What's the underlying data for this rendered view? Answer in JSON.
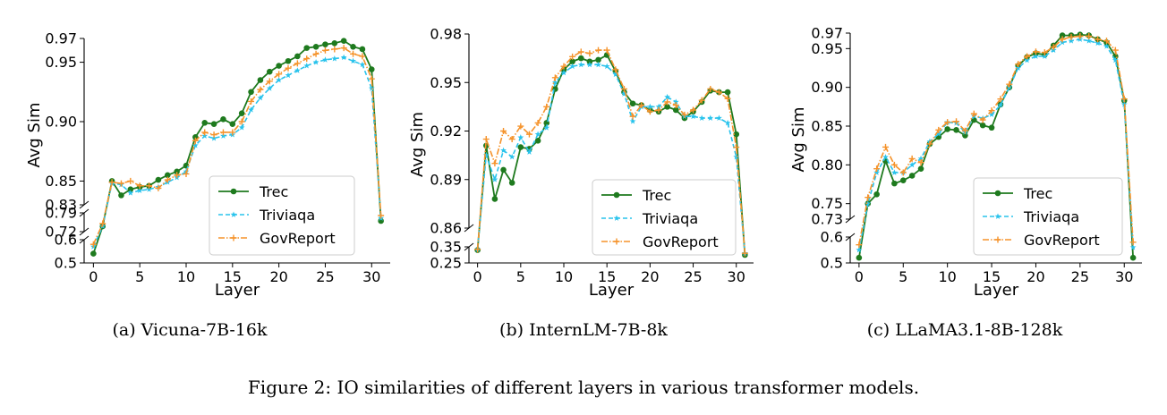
{
  "figure_caption": "Figure 2: IO similarities of different layers in various transformer models.",
  "colors": {
    "trec": "#1e7a1e",
    "triviaqa": "#29c3ec",
    "govreport": "#f5932b"
  },
  "chart_data": [
    {
      "type": "line",
      "caption": "(a)  Vicuna-7B-16k",
      "xlabel": "Layer",
      "ylabel": "Avg Sim",
      "x": [
        0,
        1,
        2,
        3,
        4,
        5,
        6,
        7,
        8,
        9,
        10,
        11,
        12,
        13,
        14,
        15,
        16,
        17,
        18,
        19,
        20,
        21,
        22,
        23,
        24,
        25,
        26,
        27,
        28,
        29,
        30,
        31
      ],
      "xticks": [
        0,
        5,
        10,
        15,
        20,
        25,
        30
      ],
      "xlim": [
        -1,
        32
      ],
      "y_segments": [
        {
          "range": [
            0.5,
            0.6
          ],
          "ticks": [
            "0.5",
            "0.6"
          ],
          "tick_values": [
            0.5,
            0.6
          ]
        },
        {
          "range": [
            0.72,
            0.79
          ],
          "ticks": [
            "0.72",
            "0.79"
          ],
          "tick_values": [
            0.72,
            0.79
          ]
        },
        {
          "range": [
            0.83,
            0.97
          ],
          "ticks": [
            "0.83",
            "0.85",
            "0.90",
            "0.95",
            "0.97"
          ],
          "tick_values": [
            0.83,
            0.85,
            0.9,
            0.95,
            0.97
          ]
        }
      ],
      "legend": {
        "placement": "lower-right",
        "entries": [
          "Trec",
          "Triviaqa",
          "GovReport"
        ]
      },
      "series": [
        {
          "name": "Trec",
          "values": [
            0.54,
            0.74,
            0.85,
            0.838,
            0.843,
            0.845,
            0.846,
            0.851,
            0.855,
            0.858,
            0.863,
            0.887,
            0.899,
            0.898,
            0.902,
            0.898,
            0.907,
            0.925,
            0.935,
            0.942,
            0.947,
            0.951,
            0.955,
            0.962,
            0.963,
            0.965,
            0.966,
            0.968,
            0.963,
            0.961,
            0.944,
            0.76
          ]
        },
        {
          "name": "Triviaqa",
          "values": [
            0.57,
            0.74,
            0.848,
            0.847,
            0.84,
            0.842,
            0.843,
            0.845,
            0.849,
            0.853,
            0.858,
            0.88,
            0.888,
            0.886,
            0.888,
            0.889,
            0.895,
            0.91,
            0.92,
            0.928,
            0.935,
            0.939,
            0.943,
            0.947,
            0.95,
            0.952,
            0.953,
            0.954,
            0.951,
            0.948,
            0.928,
            0.77
          ]
        },
        {
          "name": "GovReport",
          "values": [
            0.58,
            0.75,
            0.849,
            0.848,
            0.85,
            0.846,
            0.846,
            0.844,
            0.851,
            0.855,
            0.856,
            0.884,
            0.891,
            0.889,
            0.891,
            0.891,
            0.9,
            0.917,
            0.927,
            0.934,
            0.94,
            0.945,
            0.949,
            0.953,
            0.957,
            0.96,
            0.961,
            0.962,
            0.957,
            0.955,
            0.936,
            0.78
          ]
        }
      ]
    },
    {
      "type": "line",
      "caption": "(b)  InternLM-7B-8k",
      "xlabel": "Layer",
      "ylabel": "Avg Sim",
      "x": [
        0,
        1,
        2,
        3,
        4,
        5,
        6,
        7,
        8,
        9,
        10,
        11,
        12,
        13,
        14,
        15,
        16,
        17,
        18,
        19,
        20,
        21,
        22,
        23,
        24,
        25,
        26,
        27,
        28,
        29,
        30,
        31
      ],
      "xticks": [
        0,
        5,
        10,
        15,
        20,
        25,
        30
      ],
      "xlim": [
        -1,
        32
      ],
      "y_segments": [
        {
          "range": [
            0.25,
            0.35
          ],
          "ticks": [
            "0.25",
            "0.35"
          ],
          "tick_values": [
            0.25,
            0.35
          ]
        },
        {
          "range": [
            0.86,
            0.98
          ],
          "ticks": [
            "0.86",
            "0.89",
            "0.92",
            "0.95",
            "0.98"
          ],
          "tick_values": [
            0.86,
            0.89,
            0.92,
            0.95,
            0.98
          ]
        }
      ],
      "legend": {
        "placement": "lower-right",
        "entries": [
          "Trec",
          "Triviaqa",
          "GovReport"
        ]
      },
      "series": [
        {
          "name": "Trec",
          "values": [
            0.33,
            0.911,
            0.878,
            0.896,
            0.888,
            0.91,
            0.909,
            0.914,
            0.925,
            0.946,
            0.958,
            0.963,
            0.965,
            0.963,
            0.964,
            0.967,
            0.957,
            0.944,
            0.937,
            0.936,
            0.933,
            0.932,
            0.935,
            0.933,
            0.928,
            0.932,
            0.938,
            0.945,
            0.944,
            0.944,
            0.918,
            0.3
          ]
        },
        {
          "name": "Triviaqa",
          "values": [
            0.335,
            0.905,
            0.89,
            0.908,
            0.904,
            0.916,
            0.907,
            0.918,
            0.922,
            0.95,
            0.956,
            0.96,
            0.961,
            0.961,
            0.961,
            0.96,
            0.955,
            0.943,
            0.926,
            0.935,
            0.935,
            0.935,
            0.941,
            0.938,
            0.929,
            0.929,
            0.928,
            0.928,
            0.928,
            0.925,
            0.904,
            0.31
          ]
        },
        {
          "name": "GovReport",
          "values": [
            0.335,
            0.915,
            0.9,
            0.92,
            0.915,
            0.923,
            0.918,
            0.925,
            0.935,
            0.953,
            0.96,
            0.966,
            0.969,
            0.968,
            0.97,
            0.97,
            0.958,
            0.946,
            0.929,
            0.936,
            0.932,
            0.933,
            0.938,
            0.936,
            0.93,
            0.933,
            0.939,
            0.946,
            0.944,
            0.94,
            0.91,
            0.31
          ]
        }
      ]
    },
    {
      "type": "line",
      "caption": "(c)  LLaMA3.1-8B-128k",
      "xlabel": "Layer",
      "ylabel": "Avg Sim",
      "x": [
        0,
        1,
        2,
        3,
        4,
        5,
        6,
        7,
        8,
        9,
        10,
        11,
        12,
        13,
        14,
        15,
        16,
        17,
        18,
        19,
        20,
        21,
        22,
        23,
        24,
        25,
        26,
        27,
        28,
        29,
        30,
        31
      ],
      "xticks": [
        0,
        5,
        10,
        15,
        20,
        25,
        30
      ],
      "xlim": [
        -1,
        32
      ],
      "y_segments": [
        {
          "range": [
            0.5,
            0.6
          ],
          "ticks": [
            "0.5",
            "0.6"
          ],
          "tick_values": [
            0.5,
            0.6
          ]
        },
        {
          "range": [
            0.73,
            0.97
          ],
          "ticks": [
            "0.73",
            "0.75",
            "0.80",
            "0.85",
            "0.90",
            "0.95",
            "0.97"
          ],
          "tick_values": [
            0.73,
            0.75,
            0.8,
            0.85,
            0.9,
            0.95,
            0.97
          ]
        }
      ],
      "legend": {
        "placement": "lower-right",
        "entries": [
          "Trec",
          "Triviaqa",
          "GovReport"
        ]
      },
      "series": [
        {
          "name": "Trec",
          "values": [
            0.52,
            0.75,
            0.762,
            0.805,
            0.776,
            0.78,
            0.786,
            0.795,
            0.827,
            0.836,
            0.846,
            0.845,
            0.838,
            0.858,
            0.851,
            0.848,
            0.878,
            0.9,
            0.928,
            0.939,
            0.944,
            0.942,
            0.954,
            0.967,
            0.967,
            0.968,
            0.967,
            0.962,
            0.958,
            0.94,
            0.883,
            0.52
          ]
        },
        {
          "name": "Triviaqa",
          "values": [
            0.55,
            0.75,
            0.79,
            0.81,
            0.79,
            0.79,
            0.8,
            0.808,
            0.83,
            0.84,
            0.855,
            0.854,
            0.842,
            0.863,
            0.86,
            0.865,
            0.877,
            0.9,
            0.925,
            0.935,
            0.94,
            0.94,
            0.948,
            0.958,
            0.96,
            0.962,
            0.96,
            0.957,
            0.953,
            0.935,
            0.878,
            0.56
          ]
        },
        {
          "name": "GovReport",
          "values": [
            0.57,
            0.758,
            0.795,
            0.823,
            0.8,
            0.79,
            0.808,
            0.803,
            0.827,
            0.845,
            0.855,
            0.856,
            0.844,
            0.866,
            0.858,
            0.87,
            0.885,
            0.904,
            0.93,
            0.94,
            0.946,
            0.945,
            0.952,
            0.962,
            0.965,
            0.966,
            0.966,
            0.962,
            0.96,
            0.948,
            0.885,
            0.58
          ]
        }
      ]
    }
  ]
}
